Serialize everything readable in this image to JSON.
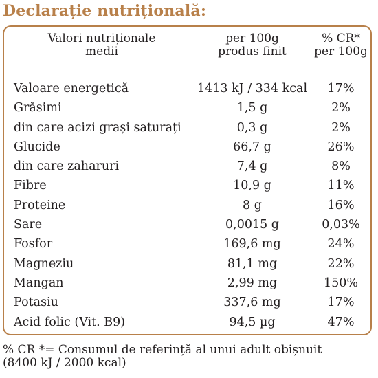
{
  "title": "Declarație nutrițională:",
  "table": {
    "headers": {
      "col1": [
        "Valori nutriționale",
        "medii"
      ],
      "col2": [
        "per 100g",
        "produs finit"
      ],
      "col3": [
        "% CR*",
        "per 100g"
      ]
    },
    "rows": [
      {
        "name": "Valoare energetică",
        "value": "1413 kJ / 334 kcal",
        "cr": "17%"
      },
      {
        "name": "Grăsimi",
        "value": "1,5 g",
        "cr": "2%"
      },
      {
        "name": "din care acizi grași saturați",
        "value": "0,3 g",
        "cr": "2%"
      },
      {
        "name": "Glucide",
        "value": "66,7 g",
        "cr": "26%"
      },
      {
        "name": "din care zaharuri",
        "value": "7,4 g",
        "cr": "8%"
      },
      {
        "name": "Fibre",
        "value": "10,9 g",
        "cr": "11%"
      },
      {
        "name": "Proteine",
        "value": "8 g",
        "cr": "16%"
      },
      {
        "name": "Sare",
        "value": "0,0015 g",
        "cr": "0,03%"
      },
      {
        "name": "Fosfor",
        "value": "169,6 mg",
        "cr": "24%"
      },
      {
        "name": "Magneziu",
        "value": "81,1 mg",
        "cr": "22%"
      },
      {
        "name": "Mangan",
        "value": "2,99 mg",
        "cr": "150%"
      },
      {
        "name": "Potasiu",
        "value": "337,6 mg",
        "cr": "17%"
      },
      {
        "name": "Acid folic (Vit. B9)",
        "value": "94,5 µg",
        "cr": "47%"
      }
    ]
  },
  "footnote": [
    "% CR *= Consumul de referință al unui adult obișnuit",
    "(8400 kJ / 2000 kcal)"
  ],
  "colors": {
    "accent": "#b8804a",
    "text": "#231f20"
  }
}
